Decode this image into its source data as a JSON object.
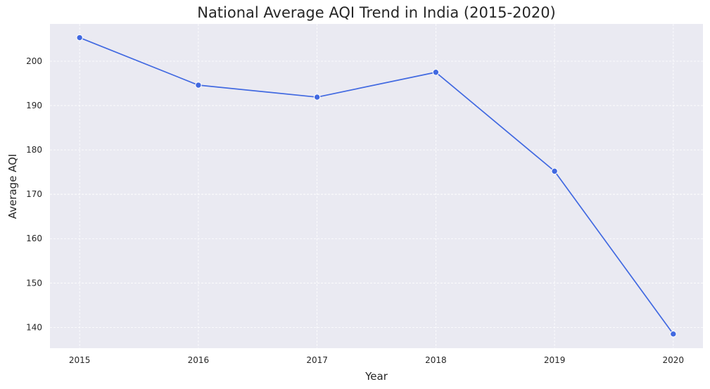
{
  "chart_data": {
    "type": "line",
    "title": "National Average AQI Trend in India (2015-2020)",
    "xlabel": "Year",
    "ylabel": "Average AQI",
    "x": [
      2015,
      2016,
      2017,
      2018,
      2019,
      2020
    ],
    "x_tick_labels": [
      "2015",
      "2016",
      "2017",
      "2018",
      "2019",
      "2020"
    ],
    "y_ticks": [
      140,
      150,
      160,
      170,
      180,
      190,
      200
    ],
    "y_tick_labels": [
      "140",
      "150",
      "160",
      "170",
      "180",
      "190",
      "200"
    ],
    "xlim": [
      2014.75,
      2020.25
    ],
    "ylim": [
      135.3,
      208.4
    ],
    "series": [
      {
        "values": [
          205.3,
          194.6,
          191.9,
          197.5,
          175.2,
          138.5
        ]
      }
    ],
    "grid": true,
    "legend": "none",
    "colors": {
      "line": "#4169e1",
      "marker_edge": "#ffffff",
      "plot_background": "#eaeaf2",
      "grid": "#ffffff",
      "text": "#262626"
    }
  }
}
